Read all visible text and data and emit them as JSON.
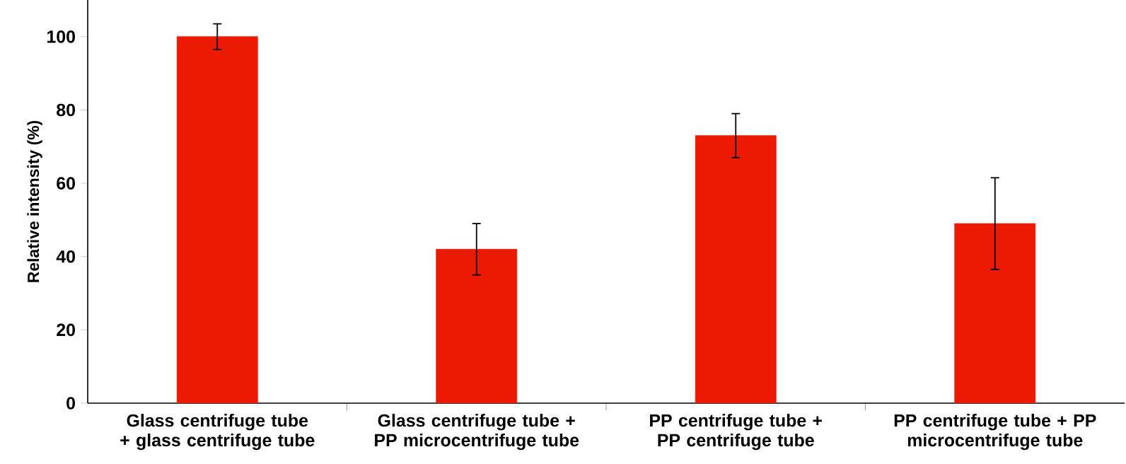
{
  "chart_data": {
    "type": "bar",
    "ylabel": "Relative intensity (%)",
    "categories": [
      "Glass centrifuge tube + glass centrifuge tube",
      "Glass centrifuge tube + PP microcentrifuge tube",
      "PP centrifuge tube + PP centrifuge tube",
      "PP centrifuge tube + PP microcentrifuge tube"
    ],
    "values": [
      100,
      42,
      73,
      49
    ],
    "errors": [
      3.5,
      7,
      6,
      12.5
    ],
    "color": "#ec1a03",
    "ylim": [
      0,
      110
    ],
    "yticks": [
      0,
      20,
      40,
      60,
      80,
      100
    ]
  }
}
